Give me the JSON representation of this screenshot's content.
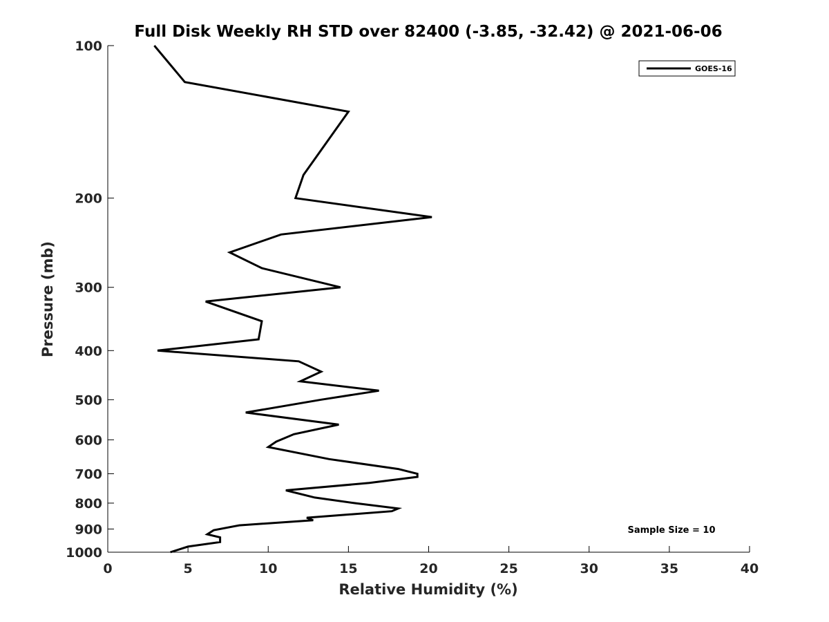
{
  "chart_data": {
    "type": "line",
    "title": "Full Disk Weekly RH STD over 82400 (-3.85, -32.42) @ 2021-06-06",
    "xlabel": "Relative Humidity (%)",
    "ylabel": "Pressure (mb)",
    "xlim": [
      0,
      40
    ],
    "ylim": [
      100,
      1000
    ],
    "y_scale": "log",
    "y_reversed": true,
    "x_ticks": [
      0,
      5,
      10,
      15,
      20,
      25,
      30,
      35,
      40
    ],
    "x_tick_labels": [
      "0",
      "5",
      "10",
      "15",
      "20",
      "25",
      "30",
      "35",
      "40"
    ],
    "y_ticks": [
      100,
      200,
      300,
      400,
      500,
      600,
      700,
      800,
      900,
      1000
    ],
    "y_tick_labels": [
      "100",
      "200",
      "300",
      "400",
      "500",
      "600",
      "700",
      "800",
      "900",
      "1000"
    ],
    "grid": false,
    "legend_position": "top-right",
    "series": [
      {
        "name": "GOES-16",
        "color": "#000000",
        "x": [
          2.9,
          4.8,
          15.0,
          12.2,
          11.7,
          20.2,
          10.8,
          7.6,
          9.6,
          14.5,
          6.1,
          9.6,
          9.4,
          3.1,
          11.9,
          13.3,
          12.0,
          16.9,
          13.3,
          8.6,
          14.4,
          11.6,
          10.5,
          10.0,
          13.8,
          18.1,
          19.3,
          19.3,
          16.3,
          11.1,
          12.9,
          15.4,
          18.1,
          17.7,
          12.4,
          12.8,
          8.2,
          6.6,
          6.2,
          7.0,
          7.0,
          5.0,
          3.9
        ],
        "y": [
          100,
          118,
          135,
          180,
          200,
          218,
          236,
          256,
          275,
          300,
          320,
          350,
          380,
          400,
          420,
          440,
          460,
          480,
          500,
          530,
          560,
          585,
          605,
          620,
          655,
          685,
          700,
          710,
          730,
          755,
          780,
          800,
          820,
          830,
          855,
          865,
          885,
          905,
          922,
          935,
          955,
          975,
          1000
        ]
      }
    ],
    "annotations": [
      {
        "text": "Sample Size = 10",
        "x": 34.5,
        "y": 900
      }
    ]
  }
}
